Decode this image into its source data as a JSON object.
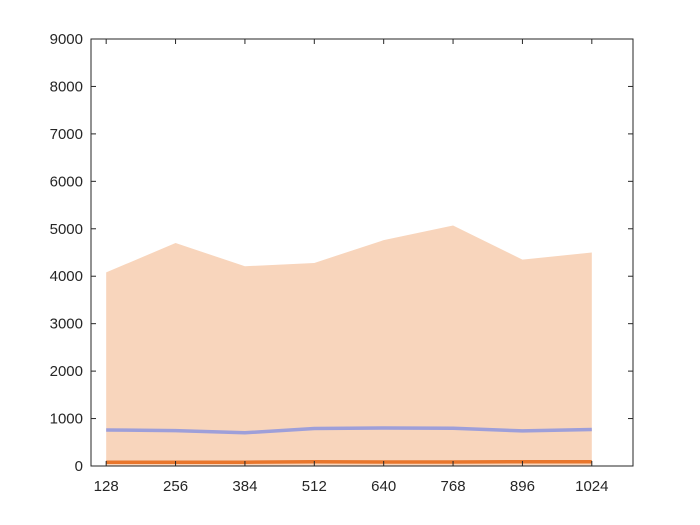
{
  "chart_data": {
    "type": "area",
    "x": [
      128,
      256,
      384,
      512,
      640,
      768,
      896,
      1024
    ],
    "xticks": [
      "128",
      "256",
      "384",
      "512",
      "640",
      "768",
      "896",
      "1024"
    ],
    "xlim": [
      100,
      1100
    ],
    "ylim": [
      0,
      9000
    ],
    "yticks": [
      "0",
      "1000",
      "2000",
      "3000",
      "4000",
      "5000",
      "6000",
      "7000",
      "8000",
      "9000"
    ],
    "title": "",
    "xlabel": "",
    "ylabel": "",
    "grid": false,
    "legend": "none",
    "series": [
      {
        "kind": "area",
        "color": "#f8d5bc",
        "values": [
          4080,
          4700,
          4210,
          4280,
          4760,
          5070,
          4350,
          4500
        ]
      },
      {
        "kind": "line",
        "color": "#9e9fd9",
        "values": [
          760,
          745,
          700,
          790,
          800,
          795,
          740,
          770
        ]
      },
      {
        "kind": "line",
        "color": "#e8762c",
        "values": [
          80,
          80,
          80,
          90,
          85,
          85,
          90,
          90
        ]
      }
    ]
  }
}
